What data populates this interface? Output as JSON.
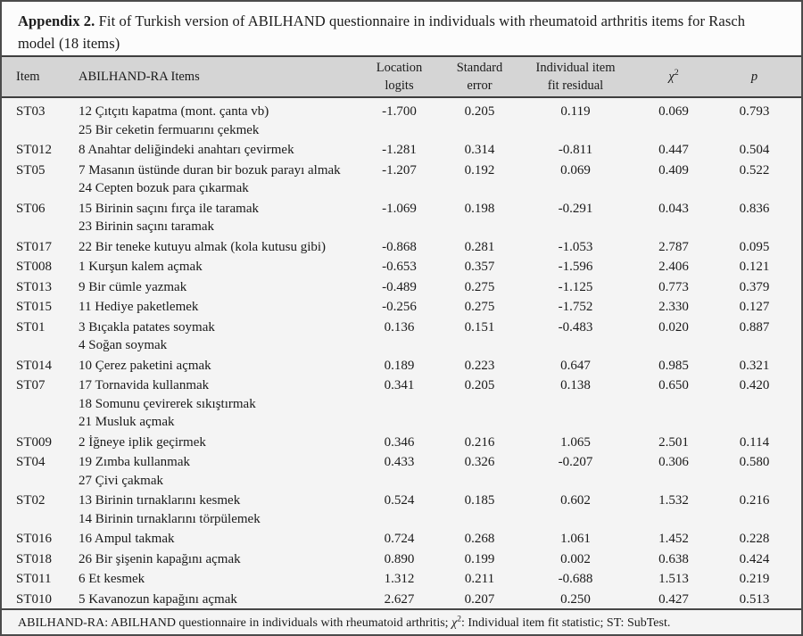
{
  "caption": {
    "label": "Appendix 2.",
    "text": " Fit of Turkish version of ABILHAND questionnaire in individuals with rheumatoid arthritis items for Rasch model (18 items)"
  },
  "table": {
    "headers": {
      "item": "Item",
      "items": "ABILHAND-RA Items",
      "location": [
        "Location",
        "logits"
      ],
      "standard": [
        "Standard",
        "error"
      ],
      "fit": [
        "Individual item",
        "fit residual"
      ],
      "chi2": {
        "base": "χ",
        "sup": "2"
      },
      "p": "p"
    },
    "rows": [
      {
        "item": "ST03",
        "tasks": [
          "12 Çıtçıtı kapatma (mont. çanta vb)",
          "25 Bir ceketin fermuarını çekmek"
        ],
        "location": "-1.700",
        "se": "0.205",
        "fit": "0.119",
        "chi2": "0.069",
        "p": "0.793"
      },
      {
        "item": "ST012",
        "tasks": [
          "8 Anahtar deliğindeki anahtarı çevirmek"
        ],
        "location": "-1.281",
        "se": "0.314",
        "fit": "-0.811",
        "chi2": "0.447",
        "p": "0.504"
      },
      {
        "item": "ST05",
        "tasks": [
          "7 Masanın üstünde duran bir bozuk parayı almak",
          "24 Cepten bozuk para çıkarmak"
        ],
        "location": "-1.207",
        "se": "0.192",
        "fit": "0.069",
        "chi2": "0.409",
        "p": "0.522"
      },
      {
        "item": "ST06",
        "tasks": [
          "15 Birinin saçını fırça ile taramak",
          "23 Birinin saçını taramak"
        ],
        "location": "-1.069",
        "se": "0.198",
        "fit": "-0.291",
        "chi2": "0.043",
        "p": "0.836"
      },
      {
        "item": "ST017",
        "tasks": [
          "22 Bir teneke kutuyu almak (kola kutusu gibi)"
        ],
        "location": "-0.868",
        "se": "0.281",
        "fit": "-1.053",
        "chi2": "2.787",
        "p": "0.095"
      },
      {
        "item": "ST008",
        "tasks": [
          "1 Kurşun kalem açmak"
        ],
        "location": "-0.653",
        "se": "0.357",
        "fit": "-1.596",
        "chi2": "2.406",
        "p": "0.121"
      },
      {
        "item": "ST013",
        "tasks": [
          "9 Bir cümle yazmak"
        ],
        "location": "-0.489",
        "se": "0.275",
        "fit": "-1.125",
        "chi2": "0.773",
        "p": "0.379"
      },
      {
        "item": "ST015",
        "tasks": [
          "11 Hediye paketlemek"
        ],
        "location": "-0.256",
        "se": "0.275",
        "fit": "-1.752",
        "chi2": "2.330",
        "p": "0.127"
      },
      {
        "item": "ST01",
        "tasks": [
          "3 Bıçakla patates soymak",
          "4 Soğan soymak"
        ],
        "location": "0.136",
        "se": "0.151",
        "fit": "-0.483",
        "chi2": "0.020",
        "p": "0.887"
      },
      {
        "item": "ST014",
        "tasks": [
          "10 Çerez paketini açmak"
        ],
        "location": "0.189",
        "se": "0.223",
        "fit": "0.647",
        "chi2": "0.985",
        "p": "0.321"
      },
      {
        "item": "ST07",
        "tasks": [
          "17 Tornavida kullanmak",
          "18 Somunu çevirerek sıkıştırmak",
          "21 Musluk açmak"
        ],
        "location": "0.341",
        "se": "0.205",
        "fit": "0.138",
        "chi2": "0.650",
        "p": "0.420"
      },
      {
        "item": "ST009",
        "tasks": [
          "2 İğneye iplik geçirmek"
        ],
        "location": "0.346",
        "se": "0.216",
        "fit": "1.065",
        "chi2": "2.501",
        "p": "0.114"
      },
      {
        "item": "ST04",
        "tasks": [
          "19 Zımba kullanmak",
          "27 Çivi çakmak"
        ],
        "location": "0.433",
        "se": "0.326",
        "fit": "-0.207",
        "chi2": "0.306",
        "p": "0.580"
      },
      {
        "item": "ST02",
        "tasks": [
          "13 Birinin tırnaklarını kesmek",
          "14 Birinin tırnaklarını törpülemek"
        ],
        "location": "0.524",
        "se": "0.185",
        "fit": "0.602",
        "chi2": "1.532",
        "p": "0.216"
      },
      {
        "item": "ST016",
        "tasks": [
          "16 Ampul takmak"
        ],
        "location": "0.724",
        "se": "0.268",
        "fit": "1.061",
        "chi2": "1.452",
        "p": "0.228"
      },
      {
        "item": "ST018",
        "tasks": [
          "26 Bir şişenin kapağını açmak"
        ],
        "location": "0.890",
        "se": "0.199",
        "fit": "0.002",
        "chi2": "0.638",
        "p": "0.424"
      },
      {
        "item": "ST011",
        "tasks": [
          "6 Et kesmek"
        ],
        "location": "1.312",
        "se": "0.211",
        "fit": "-0.688",
        "chi2": "1.513",
        "p": "0.219"
      },
      {
        "item": "ST010",
        "tasks": [
          "5 Kavanozun kapağını açmak"
        ],
        "location": "2.627",
        "se": "0.207",
        "fit": "0.250",
        "chi2": "0.427",
        "p": "0.513"
      }
    ]
  },
  "footnote": {
    "pre": "ABILHAND-RA: ABILHAND questionnaire in individuals with rheumatoid arthritis; ",
    "chi": "χ",
    "sup": "2",
    "post": ": Individual item fit statistic; ST: SubTest."
  }
}
